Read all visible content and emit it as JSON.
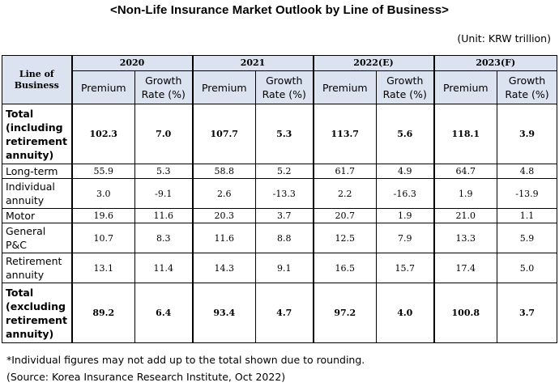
{
  "title": "<Non-Life Insurance Market Outlook by Line of Business>",
  "unit": "(Unit: KRW trillion)",
  "table": {
    "line_header": "Line of Business",
    "years": [
      "2020",
      "2021",
      "2022(E)",
      "2023(F)"
    ],
    "sub_headers": {
      "premium": "Premium",
      "growth": "Growth Rate (%)"
    },
    "rows": [
      {
        "label": "Total (including retirement annuity)",
        "bold": true,
        "values": [
          "102.3",
          "7.0",
          "107.7",
          "5.3",
          "113.7",
          "5.6",
          "118.1",
          "3.9"
        ]
      },
      {
        "label": "Long-term",
        "values": [
          "55.9",
          "5.3",
          "58.8",
          "5.2",
          "61.7",
          "4.9",
          "64.7",
          "4.8"
        ]
      },
      {
        "label": "Individual annuity",
        "values": [
          "3.0",
          "-9.1",
          "2.6",
          "-13.3",
          "2.2",
          "-16.3",
          "1.9",
          "-13.9"
        ]
      },
      {
        "label": "Motor",
        "values": [
          "19.6",
          "11.6",
          "20.3",
          "3.7",
          "20.7",
          "1.9",
          "21.0",
          "1.1"
        ]
      },
      {
        "label": "General P&C",
        "values": [
          "10.7",
          "8.3",
          "11.6",
          "8.8",
          "12.5",
          "7.9",
          "13.3",
          "5.9"
        ]
      },
      {
        "label": "Retirement annuity",
        "values": [
          "13.1",
          "11.4",
          "14.3",
          "9.1",
          "16.5",
          "15.7",
          "17.4",
          "5.0"
        ]
      },
      {
        "label": "Total (excluding retirement annuity)",
        "bold": true,
        "values": [
          "89.2",
          "6.4",
          "93.4",
          "4.7",
          "97.2",
          "4.0",
          "100.8",
          "3.7"
        ]
      }
    ]
  },
  "notes": [
    "*Individual figures may not add up to the total shown due to rounding.",
    "(Source: Korea Insurance Research Institute, Oct 2022)"
  ]
}
